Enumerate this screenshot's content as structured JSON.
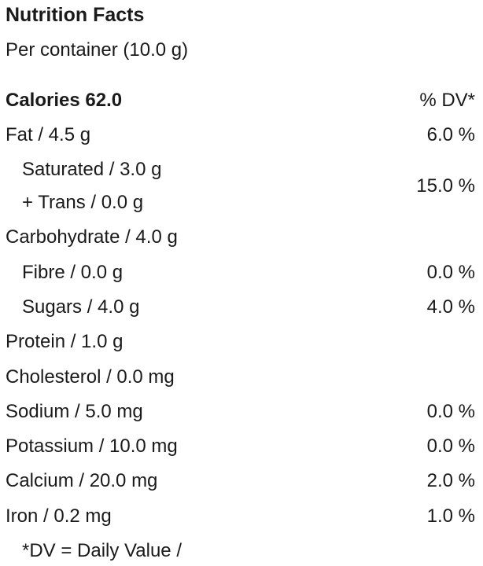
{
  "header": {
    "title": "Nutrition Facts",
    "serving": "Per container (10.0 g)"
  },
  "calories": {
    "label": "Calories 62.0",
    "dv_header": "% DV*"
  },
  "rows": [
    {
      "label": "Fat / 4.5 g",
      "dv": "6.0 %"
    },
    {
      "label": "Saturated / 3.0 g",
      "label2": "+ Trans / 0.0 g",
      "dv": "15.0 %"
    },
    {
      "label": "Carbohydrate / 4.0 g"
    },
    {
      "label": "Fibre / 0.0 g",
      "dv": "0.0 %"
    },
    {
      "label": "Sugars / 4.0 g",
      "dv": "4.0 %"
    },
    {
      "label": "Protein / 1.0 g"
    },
    {
      "label": "Cholesterol / 0.0 mg"
    },
    {
      "label": "Sodium / 5.0 mg",
      "dv": "0.0 %"
    },
    {
      "label": "Potassium / 10.0 mg",
      "dv": "0.0 %"
    },
    {
      "label": "Calcium / 20.0 mg",
      "dv": "2.0 %"
    },
    {
      "label": "Iron / 0.2 mg",
      "dv": "1.0 %"
    }
  ],
  "footnote": "*DV = Daily Value /"
}
